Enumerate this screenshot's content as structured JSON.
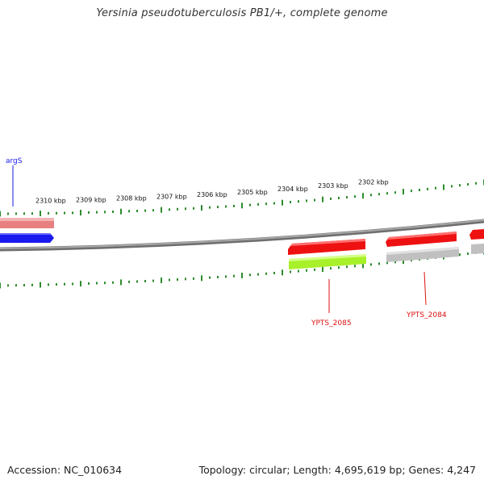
{
  "title": "Yersinia pseudotuberculosis PB1/+, complete genome",
  "accession": {
    "label": "Accession:",
    "value": "NC_010634"
  },
  "summary": {
    "topology_label": "Topology:",
    "topology": "circular",
    "length_label": "Length:",
    "length": "4,695,619 bp",
    "genes_label": "Genes:",
    "genes": "4,247"
  },
  "colors": {
    "backbone": "#8a8a8a",
    "tick": "#2e8b2e",
    "forward_gene": "#e88080",
    "forward_gene_blue": "#1a1aee",
    "reverse_gene": "#ee1111",
    "reverse_gene_pale": "#c8c8c8",
    "reverse_gene_green": "#a8f02a",
    "label_blue": "#1a1aee",
    "label_red": "#dd1111"
  },
  "scale": {
    "labels": [
      "2310 kbp",
      "2309 kbp",
      "2308 kbp",
      "2307 kbp",
      "2306 kbp",
      "2305 kbp",
      "2304 kbp",
      "2303 kbp",
      "2302 kbp"
    ]
  },
  "genes": [
    {
      "name": "argS",
      "strand": "forward"
    },
    {
      "name": "YPTS_2085",
      "strand": "reverse"
    },
    {
      "name": "YPTS_2084",
      "strand": "reverse"
    }
  ]
}
